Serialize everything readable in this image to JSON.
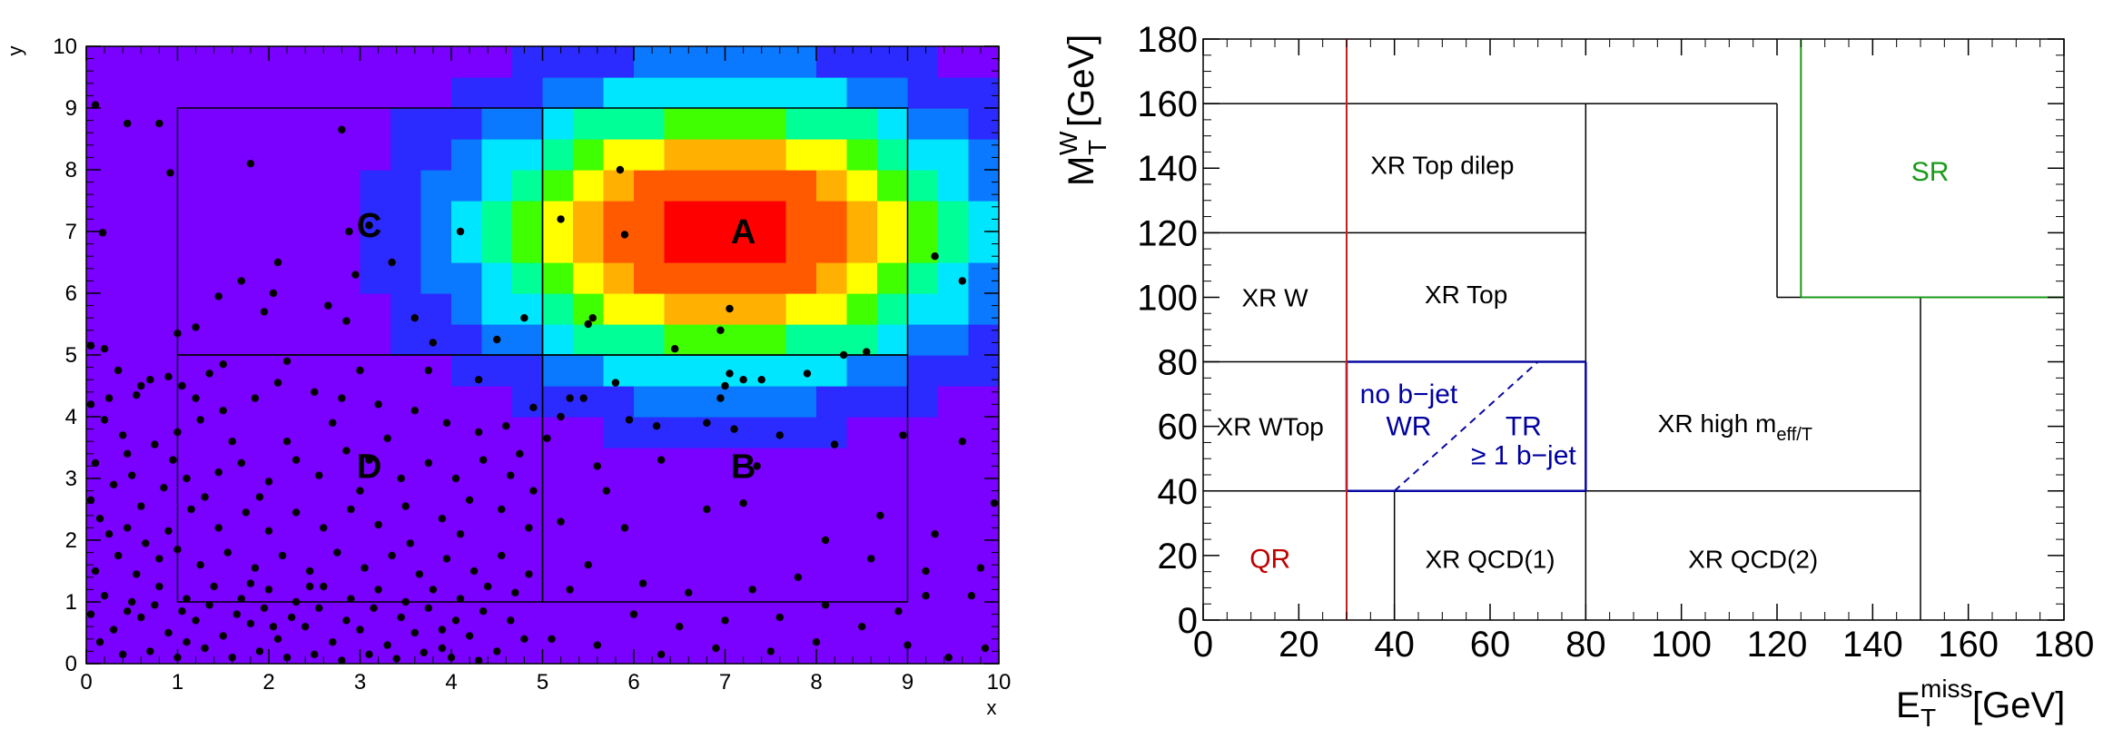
{
  "chart_data": [
    {
      "type": "heatmap",
      "xlabel": "x",
      "ylabel": "y",
      "xlim": [
        0,
        10
      ],
      "ylim": [
        0,
        10
      ],
      "x_ticks": [
        "0",
        "1",
        "2",
        "3",
        "4",
        "5",
        "6",
        "7",
        "8",
        "9",
        "10"
      ],
      "y_ticks": [
        "0",
        "1",
        "2",
        "3",
        "4",
        "5",
        "6",
        "7",
        "8",
        "9",
        "10"
      ],
      "heatmap": {
        "bins": [
          30,
          20
        ],
        "background_level": 0.0,
        "gaussian_center": [
          7,
          7
        ],
        "gaussian_sigma": [
          1.9,
          1.6
        ],
        "palette": [
          "#7a00ff",
          "#2b2bff",
          "#0a78ff",
          "#00e6ff",
          "#00ff96",
          "#40ff00",
          "#ffff00",
          "#ffb000",
          "#ff5a00",
          "#ff0000"
        ]
      },
      "regions": [
        {
          "label": "A",
          "x": [
            5,
            9
          ],
          "y": [
            5,
            9
          ],
          "label_at": [
            7.2,
            7.0
          ]
        },
        {
          "label": "B",
          "x": [
            5,
            9
          ],
          "y": [
            1,
            5
          ],
          "label_at": [
            7.2,
            3.2
          ]
        },
        {
          "label": "C",
          "x": [
            1,
            5
          ],
          "y": [
            5,
            9
          ],
          "label_at": [
            3.1,
            7.1
          ]
        },
        {
          "label": "D",
          "x": [
            1,
            5
          ],
          "y": [
            1,
            5
          ],
          "label_at": [
            3.1,
            3.2
          ]
        }
      ],
      "scatter_points": [
        [
          0.1,
          9.05
        ],
        [
          0.45,
          8.75
        ],
        [
          0.8,
          8.75
        ],
        [
          0.92,
          7.95
        ],
        [
          0.18,
          6.98
        ],
        [
          1.8,
          8.1
        ],
        [
          2.8,
          8.65
        ],
        [
          2.88,
          7.0
        ],
        [
          2.95,
          6.3
        ],
        [
          3.1,
          7.1
        ],
        [
          3.35,
          6.5
        ],
        [
          4.1,
          7.0
        ],
        [
          2.1,
          6.5
        ],
        [
          1.7,
          6.2
        ],
        [
          1.45,
          5.95
        ],
        [
          2.05,
          6.0
        ],
        [
          1.95,
          5.7
        ],
        [
          1.2,
          5.45
        ],
        [
          1.0,
          5.35
        ],
        [
          2.65,
          5.8
        ],
        [
          2.85,
          5.55
        ],
        [
          3.6,
          5.6
        ],
        [
          3.8,
          5.2
        ],
        [
          4.5,
          5.25
        ],
        [
          4.8,
          5.6
        ],
        [
          5.5,
          5.5
        ],
        [
          5.55,
          5.6
        ],
        [
          5.2,
          7.2
        ],
        [
          5.85,
          8.0
        ],
        [
          5.9,
          6.95
        ],
        [
          7.05,
          5.75
        ],
        [
          6.95,
          5.4
        ],
        [
          6.45,
          5.1
        ],
        [
          7.05,
          4.7
        ],
        [
          7.2,
          4.6
        ],
        [
          7.0,
          4.5
        ],
        [
          6.95,
          4.3
        ],
        [
          7.4,
          4.6
        ],
        [
          7.9,
          4.7
        ],
        [
          8.3,
          5.0
        ],
        [
          8.55,
          5.05
        ],
        [
          9.3,
          6.6
        ],
        [
          9.6,
          6.2
        ],
        [
          5.8,
          4.55
        ],
        [
          5.3,
          4.3
        ],
        [
          5.45,
          4.3
        ],
        [
          5.2,
          4.0
        ],
        [
          5.05,
          3.65
        ],
        [
          5.95,
          3.95
        ],
        [
          6.25,
          3.85
        ],
        [
          6.8,
          3.9
        ],
        [
          7.1,
          3.8
        ],
        [
          7.6,
          3.7
        ],
        [
          8.2,
          3.55
        ],
        [
          8.95,
          3.7
        ],
        [
          9.6,
          3.6
        ],
        [
          9.95,
          2.6
        ],
        [
          7.35,
          3.2
        ],
        [
          6.3,
          3.3
        ],
        [
          5.6,
          3.2
        ],
        [
          5.7,
          2.8
        ],
        [
          5.2,
          2.3
        ],
        [
          5.9,
          2.2
        ],
        [
          6.8,
          2.5
        ],
        [
          7.2,
          2.6
        ],
        [
          8.1,
          2.0
        ],
        [
          8.6,
          1.7
        ],
        [
          9.2,
          1.5
        ],
        [
          9.8,
          1.55
        ],
        [
          9.3,
          2.1
        ],
        [
          8.7,
          2.4
        ],
        [
          7.8,
          1.4
        ],
        [
          7.3,
          1.2
        ],
        [
          6.6,
          1.15
        ],
        [
          6.1,
          1.3
        ],
        [
          5.5,
          1.6
        ],
        [
          5.3,
          1.2
        ],
        [
          6.0,
          0.8
        ],
        [
          6.5,
          0.6
        ],
        [
          7.0,
          0.7
        ],
        [
          7.6,
          0.75
        ],
        [
          8.1,
          0.95
        ],
        [
          8.5,
          0.6
        ],
        [
          9.0,
          0.3
        ],
        [
          9.45,
          0.1
        ],
        [
          9.85,
          0.25
        ],
        [
          9.2,
          1.1
        ],
        [
          9.7,
          1.1
        ],
        [
          8.9,
          0.85
        ],
        [
          5.1,
          0.4
        ],
        [
          5.6,
          0.3
        ],
        [
          6.3,
          0.15
        ],
        [
          6.9,
          0.25
        ],
        [
          7.5,
          0.2
        ],
        [
          8.0,
          0.35
        ],
        [
          0.05,
          5.15
        ],
        [
          0.2,
          5.1
        ],
        [
          0.35,
          4.75
        ],
        [
          0.6,
          4.5
        ],
        [
          0.7,
          4.6
        ],
        [
          0.9,
          4.65
        ],
        [
          1.05,
          4.5
        ],
        [
          1.35,
          4.7
        ],
        [
          0.25,
          4.3
        ],
        [
          0.05,
          4.2
        ],
        [
          0.55,
          4.35
        ],
        [
          0.2,
          3.95
        ],
        [
          0.4,
          3.7
        ],
        [
          0.45,
          3.4
        ],
        [
          0.1,
          3.25
        ],
        [
          0.75,
          3.55
        ],
        [
          1.0,
          3.75
        ],
        [
          1.25,
          3.95
        ],
        [
          1.5,
          4.1
        ],
        [
          1.85,
          4.3
        ],
        [
          2.1,
          4.55
        ],
        [
          2.5,
          4.4
        ],
        [
          2.8,
          4.3
        ],
        [
          3.2,
          4.2
        ],
        [
          3.6,
          4.1
        ],
        [
          3.95,
          3.9
        ],
        [
          4.3,
          3.75
        ],
        [
          4.6,
          3.85
        ],
        [
          4.9,
          4.15
        ],
        [
          4.3,
          4.6
        ],
        [
          3.75,
          4.75
        ],
        [
          3.0,
          4.75
        ],
        [
          2.2,
          4.9
        ],
        [
          1.5,
          4.85
        ],
        [
          0.3,
          2.9
        ],
        [
          0.05,
          2.65
        ],
        [
          0.15,
          2.35
        ],
        [
          0.45,
          2.2
        ],
        [
          0.6,
          2.55
        ],
        [
          0.85,
          2.85
        ],
        [
          1.1,
          3.0
        ],
        [
          1.3,
          2.7
        ],
        [
          1.45,
          3.1
        ],
        [
          1.7,
          3.25
        ],
        [
          2.0,
          2.95
        ],
        [
          2.3,
          3.3
        ],
        [
          2.55,
          3.05
        ],
        [
          2.85,
          3.45
        ],
        [
          3.1,
          3.3
        ],
        [
          3.45,
          3.0
        ],
        [
          3.75,
          3.25
        ],
        [
          4.05,
          3.0
        ],
        [
          4.35,
          3.3
        ],
        [
          4.65,
          3.05
        ],
        [
          4.9,
          2.8
        ],
        [
          4.55,
          2.5
        ],
        [
          4.2,
          2.65
        ],
        [
          3.9,
          2.35
        ],
        [
          3.5,
          2.55
        ],
        [
          3.2,
          2.25
        ],
        [
          2.9,
          2.5
        ],
        [
          2.6,
          2.2
        ],
        [
          2.3,
          2.45
        ],
        [
          2.0,
          2.15
        ],
        [
          1.75,
          2.45
        ],
        [
          1.45,
          2.2
        ],
        [
          1.15,
          2.5
        ],
        [
          0.9,
          2.15
        ],
        [
          0.35,
          1.75
        ],
        [
          0.1,
          1.5
        ],
        [
          0.55,
          1.45
        ],
        [
          0.8,
          1.7
        ],
        [
          1.0,
          1.85
        ],
        [
          1.25,
          1.6
        ],
        [
          1.55,
          1.8
        ],
        [
          1.85,
          1.55
        ],
        [
          2.15,
          1.75
        ],
        [
          2.45,
          1.5
        ],
        [
          2.75,
          1.8
        ],
        [
          3.05,
          1.55
        ],
        [
          3.35,
          1.75
        ],
        [
          3.65,
          1.45
        ],
        [
          3.95,
          1.7
        ],
        [
          4.25,
          1.5
        ],
        [
          4.55,
          1.75
        ],
        [
          4.85,
          1.45
        ],
        [
          4.7,
          1.15
        ],
        [
          4.4,
          1.25
        ],
        [
          4.1,
          1.05
        ],
        [
          3.8,
          1.2
        ],
        [
          3.5,
          1.0
        ],
        [
          3.2,
          1.2
        ],
        [
          2.9,
          1.05
        ],
        [
          2.6,
          1.25
        ],
        [
          2.3,
          1.0
        ],
        [
          2.0,
          1.2
        ],
        [
          1.7,
          1.05
        ],
        [
          1.4,
          1.25
        ],
        [
          1.1,
          1.05
        ],
        [
          0.8,
          1.25
        ],
        [
          0.5,
          1.0
        ],
        [
          0.2,
          1.1
        ],
        [
          0.05,
          0.8
        ],
        [
          0.3,
          0.55
        ],
        [
          0.6,
          0.75
        ],
        [
          0.9,
          0.5
        ],
        [
          1.2,
          0.7
        ],
        [
          1.5,
          0.45
        ],
        [
          1.8,
          0.65
        ],
        [
          2.1,
          0.4
        ],
        [
          2.4,
          0.6
        ],
        [
          2.7,
          0.35
        ],
        [
          3.0,
          0.55
        ],
        [
          3.3,
          0.3
        ],
        [
          3.6,
          0.5
        ],
        [
          3.9,
          0.25
        ],
        [
          4.2,
          0.45
        ],
        [
          4.5,
          0.2
        ],
        [
          4.8,
          0.4
        ],
        [
          4.65,
          0.7
        ],
        [
          4.35,
          0.85
        ],
        [
          4.05,
          0.7
        ],
        [
          3.75,
          0.9
        ],
        [
          3.45,
          0.75
        ],
        [
          3.15,
          0.9
        ],
        [
          2.85,
          0.7
        ],
        [
          2.55,
          0.9
        ],
        [
          2.25,
          0.75
        ],
        [
          1.95,
          0.9
        ],
        [
          1.65,
          0.8
        ],
        [
          1.35,
          0.95
        ],
        [
          1.05,
          0.85
        ],
        [
          0.75,
          0.95
        ],
        [
          0.45,
          0.85
        ],
        [
          0.15,
          0.35
        ],
        [
          0.4,
          0.15
        ],
        [
          0.7,
          0.2
        ],
        [
          1.0,
          0.1
        ],
        [
          1.3,
          0.25
        ],
        [
          1.6,
          0.1
        ],
        [
          1.9,
          0.2
        ],
        [
          2.2,
          0.1
        ],
        [
          2.5,
          0.15
        ],
        [
          2.8,
          0.05
        ],
        [
          3.1,
          0.15
        ],
        [
          3.4,
          0.08
        ],
        [
          3.7,
          0.18
        ],
        [
          4.0,
          0.1
        ],
        [
          4.3,
          0.05
        ],
        [
          0.25,
          2.1
        ],
        [
          0.65,
          1.95
        ],
        [
          1.9,
          2.7
        ],
        [
          2.2,
          3.6
        ],
        [
          3.3,
          3.65
        ],
        [
          4.75,
          3.4
        ],
        [
          1.6,
          3.6
        ],
        [
          0.95,
          3.3
        ],
        [
          3.0,
          2.8
        ],
        [
          4.1,
          2.1
        ],
        [
          2.45,
          1.25
        ],
        [
          3.55,
          1.95
        ],
        [
          1.2,
          4.3
        ],
        [
          2.7,
          3.9
        ],
        [
          4.85,
          2.2
        ],
        [
          0.5,
          3.05
        ],
        [
          1.8,
          1.3
        ],
        [
          3.9,
          0.55
        ],
        [
          1.1,
          0.35
        ],
        [
          2.05,
          0.6
        ]
      ]
    },
    {
      "type": "diagram",
      "xlabel": "E_T^miss [GeV]",
      "ylabel": "M_T^W [GeV]",
      "xlim": [
        0,
        180
      ],
      "ylim": [
        0,
        180
      ],
      "x_ticks": [
        "0",
        "20",
        "40",
        "60",
        "80",
        "100",
        "120",
        "140",
        "160",
        "180"
      ],
      "y_ticks": [
        "0",
        "20",
        "40",
        "60",
        "80",
        "100",
        "120",
        "140",
        "160",
        "180"
      ],
      "regions": [
        {
          "label": "XR Top dilep",
          "label_at": [
            50,
            141
          ]
        },
        {
          "label": "XR W",
          "label_at": [
            15,
            100
          ]
        },
        {
          "label": "XR Top",
          "label_at": [
            55,
            101
          ]
        },
        {
          "label": "XR WTop",
          "label_at": [
            14,
            60
          ]
        },
        {
          "label": "XR high m",
          "subscript": "eff/T",
          "label_at": [
            115,
            61
          ]
        },
        {
          "label": "XR QCD(1)",
          "label_at": [
            60,
            19
          ]
        },
        {
          "label": "XR QCD(2)",
          "label_at": [
            115,
            19
          ]
        },
        {
          "label": "QR",
          "label_at": [
            14,
            19
          ],
          "color": "#c00000"
        },
        {
          "label": "SR",
          "label_at": [
            152,
            139
          ],
          "color": "#1a9a1a"
        },
        {
          "label": "no b−jet",
          "label_at": [
            43,
            70
          ],
          "color": "#0000a0"
        },
        {
          "label": "WR",
          "label_at": [
            43,
            60
          ],
          "color": "#0000a0"
        },
        {
          "label": "TR",
          "label_at": [
            67,
            60
          ],
          "color": "#0000a0"
        },
        {
          "label": "≥ 1 b−jet",
          "label_at": [
            67,
            51
          ],
          "color": "#0000a0"
        }
      ]
    }
  ]
}
